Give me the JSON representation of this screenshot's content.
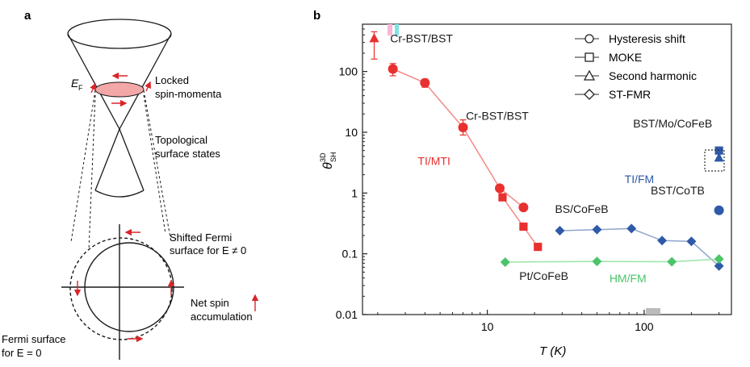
{
  "panel_a": {
    "label": "a",
    "ef_main": "E",
    "ef_sub": "F",
    "locked_line1": "Locked",
    "locked_line2": "spin-momenta",
    "topo_line1": "Topological",
    "topo_line2": "surface states",
    "shifted_line1": "Shifted Fermi",
    "shifted_line2": "surface for E ≠ 0",
    "net_line1": "Net spin",
    "net_line2": "accumulation",
    "fermi_line1": "Fermi surface",
    "fermi_line2": "for E = 0"
  },
  "colors": {
    "ti_mti": "#e8312f",
    "ti_fm": "#2e5aa8",
    "hm_fm": "#4cc46a",
    "arrow": "#d9252a",
    "fermi_fill": "#f4a7a7",
    "axis": "#222222"
  },
  "chart_data": {
    "type": "scatter",
    "panel_label": "b",
    "xlabel": "T (K)",
    "ylabel_main": "θ",
    "ylabel_sup": "3D",
    "ylabel_sub": "SH",
    "xscale": "log",
    "yscale": "log",
    "xlim": [
      1.6,
      360
    ],
    "ylim": [
      0.01,
      600
    ],
    "x_ticks": [
      {
        "v": 10,
        "label": "10"
      },
      {
        "v": 100,
        "label": "100"
      }
    ],
    "y_ticks": [
      {
        "v": 0.01,
        "label": "0.01"
      },
      {
        "v": 0.1,
        "label": "0.1"
      },
      {
        "v": 1,
        "label": "1"
      },
      {
        "v": 10,
        "label": "10"
      },
      {
        "v": 100,
        "label": "100"
      }
    ],
    "legend": {
      "placement": "top-right",
      "entries": [
        {
          "marker": "circle",
          "label": "Hysteresis shift"
        },
        {
          "marker": "square",
          "label": "MOKE"
        },
        {
          "marker": "triangle",
          "label": "Second harmonic"
        },
        {
          "marker": "diamond",
          "label": "ST-FMR"
        }
      ]
    },
    "series": [
      {
        "group": "TI/MTI",
        "color": "#e8312f",
        "points": [
          {
            "x": 1.9,
            "y": 350,
            "marker": "triangle",
            "err": [
              160,
              450
            ]
          },
          {
            "x": 2.5,
            "y": 110,
            "marker": "circle",
            "err": [
              85,
              135
            ]
          },
          {
            "x": 4.0,
            "y": 65,
            "marker": "circle",
            "err": [
              55,
              75
            ]
          },
          {
            "x": 7.0,
            "y": 12,
            "marker": "circle",
            "err": [
              9,
              16
            ]
          },
          {
            "x": 12.0,
            "y": 1.2,
            "marker": "circle"
          },
          {
            "x": 17.0,
            "y": 0.58,
            "marker": "circle"
          },
          {
            "x": 12.5,
            "y": 0.85,
            "marker": "square"
          },
          {
            "x": 17.0,
            "y": 0.28,
            "marker": "square"
          },
          {
            "x": 21.0,
            "y": 0.13,
            "marker": "square"
          }
        ]
      },
      {
        "group": "TI/FM",
        "color": "#2e5aa8",
        "points": [
          {
            "x": 29,
            "y": 0.24,
            "marker": "diamond"
          },
          {
            "x": 50,
            "y": 0.25,
            "marker": "diamond"
          },
          {
            "x": 83,
            "y": 0.26,
            "marker": "diamond"
          },
          {
            "x": 130,
            "y": 0.165,
            "marker": "diamond"
          },
          {
            "x": 200,
            "y": 0.16,
            "marker": "diamond"
          },
          {
            "x": 300,
            "y": 0.063,
            "marker": "diamond"
          },
          {
            "x": 300,
            "y": 0.52,
            "marker": "circle"
          },
          {
            "x": 300,
            "y": 5.0,
            "marker": "square"
          },
          {
            "x": 300,
            "y": 3.8,
            "marker": "triangle"
          }
        ]
      },
      {
        "group": "HM/FM",
        "color": "#4cc46a",
        "points": [
          {
            "x": 13,
            "y": 0.073,
            "marker": "diamond"
          },
          {
            "x": 50,
            "y": 0.075,
            "marker": "diamond"
          },
          {
            "x": 150,
            "y": 0.074,
            "marker": "diamond"
          },
          {
            "x": 300,
            "y": 0.082,
            "marker": "diamond"
          }
        ]
      }
    ],
    "annotations": [
      {
        "text": "Cr-BST/BST",
        "x": 2.4,
        "y": 300,
        "color": "#1a1a1a"
      },
      {
        "text": "Cr-BST/BST",
        "x": 7.3,
        "y": 16,
        "color": "#1a1a1a"
      },
      {
        "text": "TI/MTI",
        "x": 3.6,
        "y": 2.9,
        "color": "#e8312f"
      },
      {
        "text": "BST/Mo/CoFeB",
        "x": 85,
        "y": 12,
        "color": "#1a1a1a"
      },
      {
        "text": "TI/FM",
        "x": 75,
        "y": 1.45,
        "color": "#2e5aa8"
      },
      {
        "text": "BST/CoTB",
        "x": 110,
        "y": 0.95,
        "color": "#1a1a1a"
      },
      {
        "text": "BS/CoFeB",
        "x": 27,
        "y": 0.47,
        "color": "#1a1a1a"
      },
      {
        "text": "Pt/CoFeB",
        "x": 16,
        "y": 0.037,
        "color": "#1a1a1a"
      },
      {
        "text": "HM/FM",
        "x": 60,
        "y": 0.034,
        "color": "#4cc46a"
      }
    ]
  }
}
